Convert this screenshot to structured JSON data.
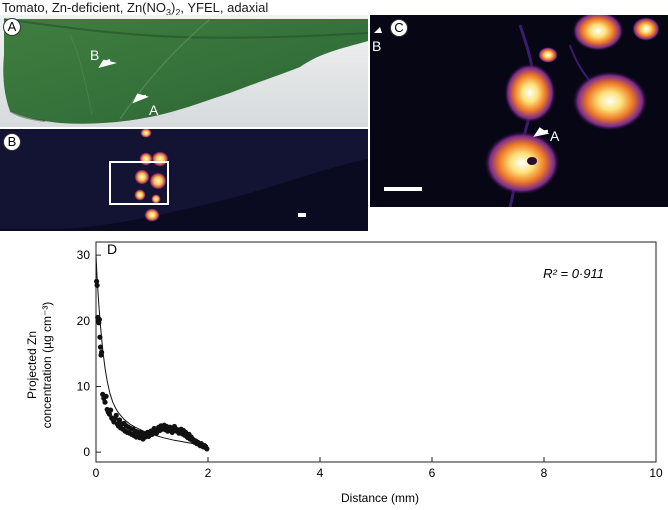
{
  "figure": {
    "title_prefix": "Tomato, Zn-deficient, Zn(NO",
    "title_sub1": "3",
    "title_mid": ")",
    "title_sub2": "2",
    "title_suffix": ", YFEL, adaxial"
  },
  "panels": {
    "a": {
      "label": "A",
      "arrow_b": "B",
      "arrow_a": "A"
    },
    "b": {
      "label": "B"
    },
    "c": {
      "label": "C",
      "arrow_b": "B",
      "arrow_a": "A"
    }
  },
  "colors": {
    "leaf": "#3e7a3c",
    "leaf_dark": "#2d5e2e",
    "xray_bg": "#0a0a20",
    "hot_spot": "#fff4b0",
    "warm": "#f08a2a",
    "cool": "#6a2fa0"
  },
  "chart_data": {
    "type": "scatter",
    "panel_label": "D",
    "xlabel": "Distance (mm)",
    "ylabel_line1": "Projected Zn",
    "ylabel_line2": "concentration (µg cm⁻³)",
    "annotation": "R² = 0·911",
    "xlim": [
      0,
      10
    ],
    "ylim": [
      -1.5,
      32
    ],
    "xticks": [
      0,
      2,
      4,
      6,
      8,
      10
    ],
    "yticks": [
      0,
      10,
      20,
      30
    ],
    "points_x": [
      0.01,
      0.02,
      0.03,
      0.04,
      0.05,
      0.06,
      0.07,
      0.08,
      0.09,
      0.1,
      0.12,
      0.14,
      0.16,
      0.18,
      0.2,
      0.22,
      0.24,
      0.26,
      0.28,
      0.3,
      0.32,
      0.34,
      0.36,
      0.38,
      0.4,
      0.42,
      0.44,
      0.46,
      0.48,
      0.5,
      0.52,
      0.54,
      0.56,
      0.58,
      0.6,
      0.62,
      0.64,
      0.66,
      0.68,
      0.7,
      0.72,
      0.74,
      0.76,
      0.78,
      0.8,
      0.82,
      0.84,
      0.86,
      0.88,
      0.9,
      0.92,
      0.94,
      0.96,
      0.98,
      1.0,
      1.02,
      1.04,
      1.06,
      1.08,
      1.1,
      1.12,
      1.14,
      1.16,
      1.18,
      1.2,
      1.22,
      1.24,
      1.26,
      1.28,
      1.3,
      1.32,
      1.34,
      1.36,
      1.38,
      1.4,
      1.42,
      1.44,
      1.46,
      1.48,
      1.5,
      1.52,
      1.54,
      1.56,
      1.58,
      1.6,
      1.62,
      1.64,
      1.66,
      1.68,
      1.7,
      1.72,
      1.74,
      1.76,
      1.78,
      1.8,
      1.82,
      1.84,
      1.86,
      1.88,
      1.9,
      1.92,
      1.94,
      1.96,
      1.98
    ],
    "points_y": [
      26,
      25.4,
      20.5,
      20,
      19.7,
      20.2,
      17.5,
      16,
      14.8,
      15.2,
      8.8,
      8.2,
      7.6,
      8.5,
      6.5,
      6.1,
      5.8,
      6.4,
      5.2,
      5.0,
      4.6,
      5.1,
      5.6,
      4.3,
      4.0,
      4.9,
      3.7,
      4.3,
      3.5,
      4.4,
      3.2,
      4.0,
      3.0,
      3.8,
      2.9,
      3.6,
      2.7,
      3.5,
      2.5,
      3.2,
      2.3,
      3.1,
      2.6,
      2.2,
      3.0,
      2.4,
      2.0,
      2.8,
      2.3,
      2.6,
      3.0,
      2.4,
      2.8,
      3.2,
      2.7,
      3.3,
      3.6,
      3.1,
      2.9,
      3.4,
      3.8,
      3.3,
      4.0,
      3.5,
      3.7,
      4.1,
      3.4,
      3.9,
      3.2,
      3.6,
      3.8,
      3.3,
      3.0,
      3.5,
      3.9,
      3.6,
      3.2,
      3.4,
      2.9,
      3.1,
      3.5,
      2.8,
      3.3,
      2.6,
      3.0,
      2.4,
      2.2,
      2.7,
      2.0,
      2.3,
      1.8,
      1.9,
      1.5,
      1.7,
      1.3,
      1.5,
      1.2,
      1.0,
      1.3,
      0.9,
      0.8,
      1.0,
      0.7,
      0.5
    ],
    "fit_x": [
      0.0,
      0.02,
      0.05,
      0.08,
      0.12,
      0.16,
      0.2,
      0.25,
      0.3,
      0.35,
      0.4,
      0.5,
      0.6,
      0.7,
      0.8,
      0.9,
      1.0,
      1.2,
      1.4,
      1.6,
      1.8,
      2.0
    ],
    "fit_y": [
      30.0,
      26.5,
      22.5,
      19.2,
      15.6,
      12.8,
      10.8,
      8.9,
      7.6,
      6.7,
      6.0,
      5.0,
      4.3,
      3.8,
      3.4,
      3.0,
      2.7,
      2.2,
      1.8,
      1.5,
      1.2,
      1.0
    ]
  }
}
